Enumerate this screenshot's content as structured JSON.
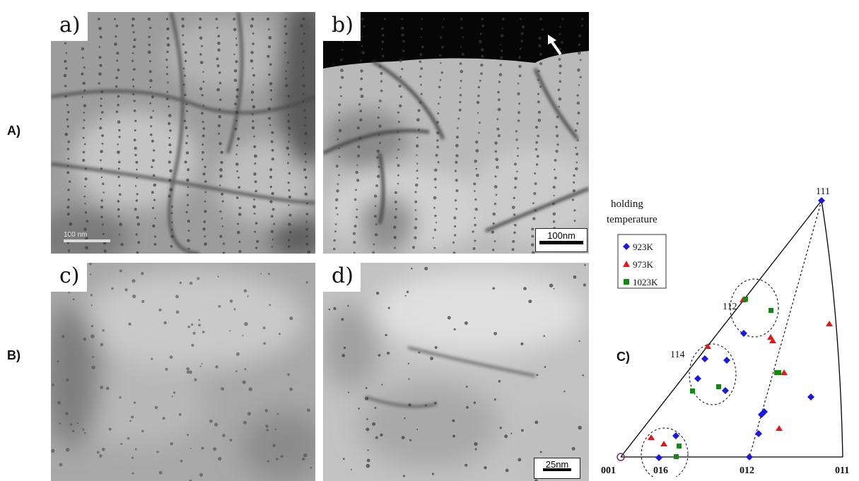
{
  "rows": {
    "A": "A)",
    "B": "B)",
    "C": "C)"
  },
  "panels": {
    "a": {
      "label": "a)",
      "scale": "100 nm"
    },
    "b": {
      "label": "b)",
      "scale": "100nm"
    },
    "c": {
      "label": "c)"
    },
    "d": {
      "label": "d)",
      "scale": "25nm"
    }
  },
  "ipf": {
    "legend_title_1": "holding",
    "legend_title_2": "temperature",
    "poles": {
      "p111": "111",
      "p112": "112",
      "p114": "114",
      "p001": "001",
      "p016": "016",
      "p012": "012",
      "p011": "011"
    },
    "series": [
      {
        "name": "923K",
        "color": "#1a1adf",
        "marker": "diamond"
      },
      {
        "name": "973K",
        "color": "#e01818",
        "marker": "triangle"
      },
      {
        "name": "1023K",
        "color": "#118a11",
        "marker": "square"
      }
    ]
  },
  "colors": {
    "blue": "#1a1adf",
    "red": "#e01818",
    "green": "#118a11"
  }
}
